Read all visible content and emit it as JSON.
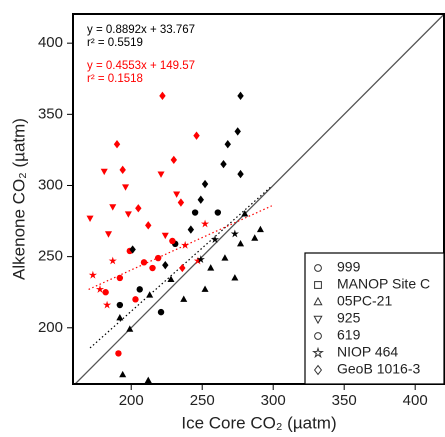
{
  "chart_data": {
    "type": "scatter",
    "x_label": "Ice Core CO₂ (µatm)",
    "y_label": "Alkenone CO₂ (µatm)",
    "xlim": [
      159,
      421
    ],
    "ylim": [
      160.5,
      420.5
    ],
    "xticks": [
      200,
      250,
      300,
      350,
      400
    ],
    "yticks": [
      200,
      250,
      300,
      350,
      400
    ],
    "identity_line": true,
    "fits": [
      {
        "equation": "y = 0.8892x + 33.767",
        "r2": "r² = 0.5519",
        "slope": 0.8892,
        "intercept": 33.767,
        "x_range": [
          171,
          299
        ],
        "color": "#000000"
      },
      {
        "equation": "y = 0.4553x + 149.57",
        "r2": "r² = 0.1518",
        "slope": 0.4553,
        "intercept": 149.57,
        "x_range": [
          170,
          299
        ],
        "color": "#ff0000"
      }
    ],
    "series": [
      {
        "name": "999",
        "marker": "circle",
        "color": "#000000",
        "x": [
          245,
          231,
          261,
          221,
          206,
          192
        ],
        "y": [
          281,
          259,
          281,
          211,
          227,
          216
        ]
      },
      {
        "name": "MANOP Site C",
        "marker": "square",
        "color": "#000000",
        "x": [],
        "y": []
      },
      {
        "name": "05PC-21",
        "marker": "triangle-up",
        "color": "#000000",
        "x": [
          256,
          266,
          277,
          291,
          273,
          252,
          237,
          228,
          213,
          192,
          199,
          212,
          194,
          280,
          287
        ],
        "y": [
          242,
          249,
          259,
          269,
          235,
          227,
          220,
          234,
          223,
          207,
          199,
          163,
          167,
          280,
          263
        ]
      },
      {
        "name": "925",
        "marker": "triangle-down",
        "color": "#ff0000",
        "x": [
          181,
          196,
          187,
          198,
          171,
          184,
          224,
          221,
          232
        ],
        "y": [
          310,
          299,
          285,
          280,
          277,
          266,
          265,
          308,
          294
        ]
      },
      {
        "name": "619",
        "marker": "circle",
        "color": "#ff0000",
        "x": [
          199,
          209,
          192,
          219,
          182,
          229,
          215,
          203,
          191
        ],
        "y": [
          254,
          246,
          235,
          249,
          225,
          261,
          242,
          220,
          182
        ]
      },
      {
        "name": "NIOP 464",
        "marker": "star",
        "color": "#ff0000",
        "x": [
          183,
          187,
          173,
          252,
          238,
          178,
          247
        ],
        "y": [
          216,
          247,
          237,
          273,
          258,
          227,
          247
        ]
      },
      {
        "name": "NIOP 464",
        "marker": "star",
        "color": "#000000",
        "x": [
          259,
          249,
          273
        ],
        "y": [
          262,
          248,
          266
        ]
      },
      {
        "name": "GeoB 1016-3",
        "marker": "diamond",
        "color": "#ff0000",
        "x": [
          222,
          190,
          246,
          230,
          235,
          205,
          212,
          194,
          236
        ],
        "y": [
          363,
          329,
          335,
          318,
          288,
          284,
          272,
          311,
          242
        ]
      },
      {
        "name": "GeoB 1016-3",
        "marker": "diamond",
        "color": "#000000",
        "x": [
          277,
          275,
          268,
          265,
          277,
          252,
          249,
          242,
          224,
          201
        ],
        "y": [
          363,
          338,
          329,
          315,
          308,
          301,
          290,
          269,
          244,
          255
        ]
      }
    ]
  }
}
